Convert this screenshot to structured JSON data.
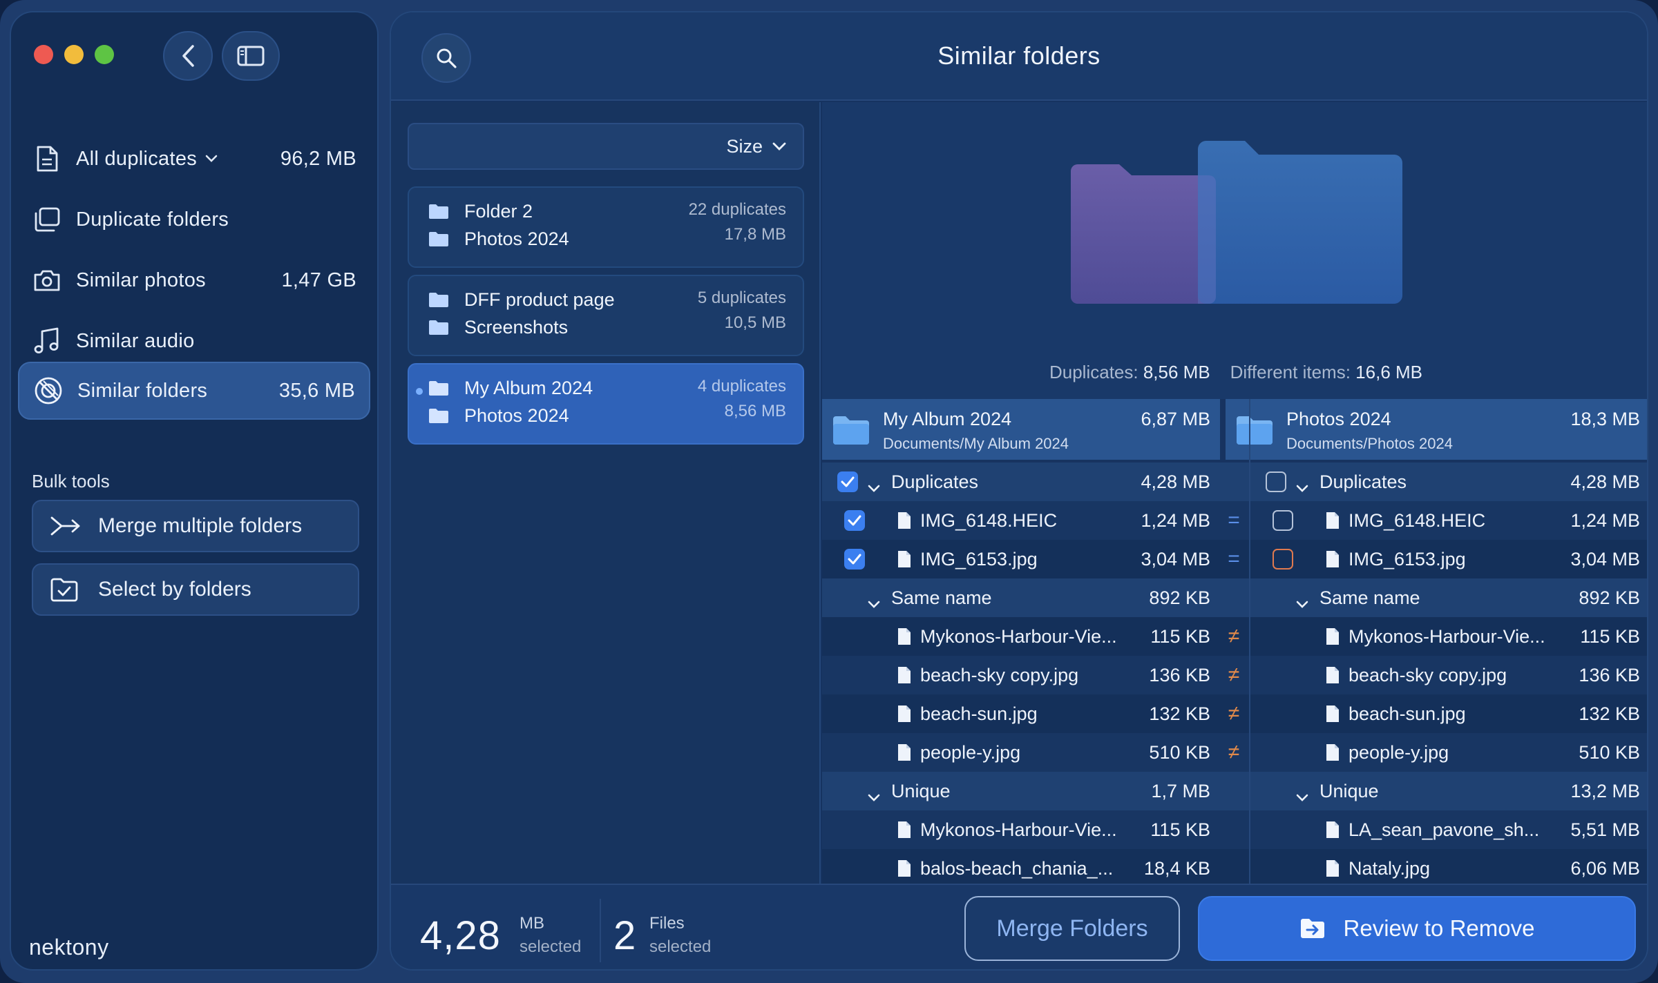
{
  "sidebar": {
    "items": [
      {
        "label": "All duplicates",
        "size": "96,2 MB",
        "icon": "document-icon",
        "has_chevron": true
      },
      {
        "label": "Duplicate folders",
        "size": "",
        "icon": "folders-icon"
      },
      {
        "label": "Similar photos",
        "size": "1,47 GB",
        "icon": "camera-icon"
      },
      {
        "label": "Similar audio",
        "size": "",
        "icon": "music-note-icon"
      },
      {
        "label": "Similar folders",
        "size": "35,6 MB",
        "icon": "similar-folders-icon",
        "active": true
      }
    ],
    "bulk_title": "Bulk tools",
    "bulk_tools": [
      {
        "label": "Merge multiple folders",
        "icon": "merge-arrows-icon"
      },
      {
        "label": "Select by folders",
        "icon": "folder-check-icon"
      }
    ],
    "logo": "nektony"
  },
  "header": {
    "title": "Similar folders"
  },
  "list": {
    "sort_label": "Size",
    "pairs": [
      {
        "folder_a": "Folder 2",
        "folder_b": "Photos 2024",
        "duplicates": "22 duplicates",
        "size": "17,8 MB"
      },
      {
        "folder_a": "DFF product page",
        "folder_b": "Screenshots",
        "duplicates": "5 duplicates",
        "size": "10,5 MB"
      },
      {
        "folder_a": "My Album 2024",
        "folder_b": "Photos 2024",
        "duplicates": "4 duplicates",
        "size": "8,56 MB",
        "active": true
      }
    ]
  },
  "preview": {
    "duplicates_label": "Duplicates:",
    "duplicates_value": "8,56 MB",
    "different_label": "Different items:",
    "different_value": "16,6 MB"
  },
  "compare": {
    "left": {
      "name": "My Album 2024",
      "path": "Documents/My Album 2024",
      "size": "6,87 MB",
      "rows": [
        {
          "kind": "group",
          "label": "Duplicates",
          "size": "4,28 MB",
          "checkbox": "on"
        },
        {
          "kind": "file",
          "label": "IMG_6148.HEIC",
          "size": "1,24 MB",
          "checkbox": "on",
          "sign": "="
        },
        {
          "kind": "file",
          "label": "IMG_6153.jpg",
          "size": "3,04 MB",
          "checkbox": "on",
          "sign": "="
        },
        {
          "kind": "group",
          "label": "Same name",
          "size": "892 KB"
        },
        {
          "kind": "file",
          "label": "Mykonos-Harbour-Vie...",
          "size": "115 KB",
          "sign": "≠"
        },
        {
          "kind": "file",
          "label": "beach-sky copy.jpg",
          "size": "136 KB",
          "sign": "≠"
        },
        {
          "kind": "file",
          "label": "beach-sun.jpg",
          "size": "132 KB",
          "sign": "≠"
        },
        {
          "kind": "file",
          "label": "people-y.jpg",
          "size": "510 KB",
          "sign": "≠"
        },
        {
          "kind": "group",
          "label": "Unique",
          "size": "1,7 MB"
        },
        {
          "kind": "file",
          "label": "Mykonos-Harbour-Vie...",
          "size": "115 KB"
        },
        {
          "kind": "file",
          "label": "balos-beach_chania_...",
          "size": "18,4 KB"
        }
      ]
    },
    "right": {
      "name": "Photos 2024",
      "path": "Documents/Photos 2024",
      "size": "18,3 MB",
      "rows": [
        {
          "kind": "group",
          "label": "Duplicates",
          "size": "4,28 MB",
          "checkbox": "off"
        },
        {
          "kind": "file",
          "label": "IMG_6148.HEIC",
          "size": "1,24 MB",
          "checkbox": "off"
        },
        {
          "kind": "file",
          "label": "IMG_6153.jpg",
          "size": "3,04 MB",
          "checkbox": "warn"
        },
        {
          "kind": "group",
          "label": "Same name",
          "size": "892 KB"
        },
        {
          "kind": "file",
          "label": "Mykonos-Harbour-Vie...",
          "size": "115 KB"
        },
        {
          "kind": "file",
          "label": "beach-sky copy.jpg",
          "size": "136 KB"
        },
        {
          "kind": "file",
          "label": "beach-sun.jpg",
          "size": "132 KB"
        },
        {
          "kind": "file",
          "label": "people-y.jpg",
          "size": "510 KB"
        },
        {
          "kind": "group",
          "label": "Unique",
          "size": "13,2 MB"
        },
        {
          "kind": "file",
          "label": "LA_sean_pavone_sh...",
          "size": "5,51 MB"
        },
        {
          "kind": "file",
          "label": "Nataly.jpg",
          "size": "6,06 MB"
        }
      ]
    }
  },
  "footer": {
    "size_value": "4,28",
    "size_unit": "MB",
    "size_caption": "selected",
    "files_value": "2",
    "files_unit": "Files",
    "files_caption": "selected",
    "merge_label": "Merge Folders",
    "review_label": "Review to Remove"
  },
  "colors": {
    "accent": "#2e6bd8",
    "sidebar_bg": "#132d55",
    "main_bg": "#163360",
    "checkbox_on": "#3b7ff0",
    "not_equal": "#e0894a",
    "equal": "#5b8fe8"
  }
}
